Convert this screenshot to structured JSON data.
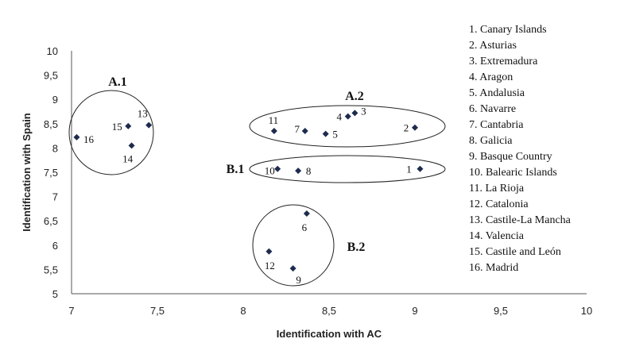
{
  "chart_data": {
    "type": "scatter",
    "xlabel": "Identification with AC",
    "ylabel": "Identification with Spain",
    "xlim": [
      7,
      10
    ],
    "ylim": [
      5,
      10
    ],
    "xticks": [
      "7",
      "7,5",
      "8",
      "8,5",
      "9",
      "9,5",
      "10"
    ],
    "yticks": [
      "5",
      "5,5",
      "6",
      "6,5",
      "7",
      "7,5",
      "8",
      "8,5",
      "9",
      "9,5",
      "10"
    ],
    "points": [
      {
        "label": "1",
        "x": 9.03,
        "y": 7.57
      },
      {
        "label": "2",
        "x": 9.0,
        "y": 8.42
      },
      {
        "label": "3",
        "x": 8.65,
        "y": 8.72
      },
      {
        "label": "4",
        "x": 8.61,
        "y": 8.65
      },
      {
        "label": "5",
        "x": 8.48,
        "y": 8.29
      },
      {
        "label": "6",
        "x": 8.37,
        "y": 6.65
      },
      {
        "label": "7",
        "x": 8.36,
        "y": 8.35
      },
      {
        "label": "8",
        "x": 8.32,
        "y": 7.53
      },
      {
        "label": "9",
        "x": 8.29,
        "y": 5.52
      },
      {
        "label": "10",
        "x": 8.2,
        "y": 7.57
      },
      {
        "label": "11",
        "x": 8.18,
        "y": 8.35
      },
      {
        "label": "12",
        "x": 8.15,
        "y": 5.87
      },
      {
        "label": "13",
        "x": 7.45,
        "y": 8.47
      },
      {
        "label": "14",
        "x": 7.35,
        "y": 8.05
      },
      {
        "label": "15",
        "x": 7.33,
        "y": 8.45
      },
      {
        "label": "16",
        "x": 7.03,
        "y": 8.22
      }
    ],
    "clusters": [
      "A.1",
      "A.2",
      "B.1",
      "B.2"
    ],
    "legend": [
      "1. Canary Islands",
      "2. Asturias",
      "3. Extremadura",
      "4. Aragon",
      "5. Andalusia",
      "6. Navarre",
      "7. Cantabria",
      "8. Galicia",
      "9. Basque Country",
      "10. Balearic Islands",
      "11. La Rioja",
      "12. Catalonia",
      "13. Castile-La Mancha",
      "14. Valencia",
      "15. Castile and León",
      "16. Madrid"
    ],
    "legend_position": "right",
    "grid": false
  }
}
